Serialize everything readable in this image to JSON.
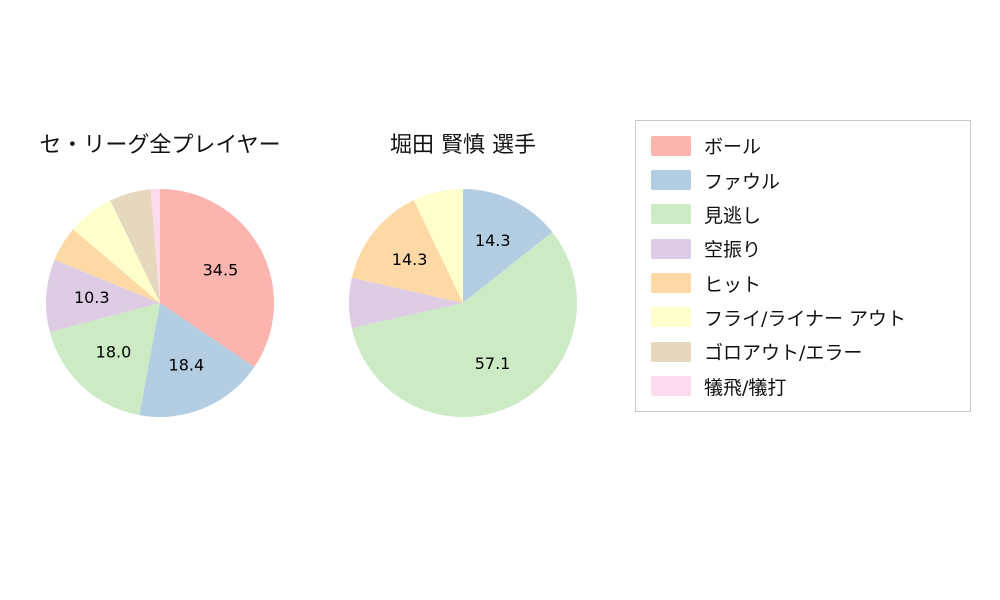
{
  "chart_data": {
    "type": "pie",
    "legend_position": "right",
    "grid": false,
    "categories": [
      "ボール",
      "ファウル",
      "見逃し",
      "空振り",
      "ヒット",
      "フライ/ライナー アウト",
      "ゴロアウト/エラー",
      "犠飛/犠打"
    ],
    "colors": [
      "#fbb4ae",
      "#b3cde3",
      "#ccebc5",
      "#decbe4",
      "#fed9a6",
      "#ffffcc",
      "#e5d8bd",
      "#fddaec"
    ],
    "start_angle": "top",
    "direction": "clockwise",
    "value_label_min_percent": 10,
    "value_label_format": "one_decimal",
    "pies": [
      {
        "title": "セ・リーグ全プレイヤー",
        "values": [
          34.5,
          18.4,
          18.0,
          10.3,
          5.0,
          6.6,
          5.9,
          1.3
        ],
        "shown_value_labels": [
          "34.5",
          "18.4",
          "18.0",
          "10.3"
        ]
      },
      {
        "title": "堀田 賢慎 選手",
        "values": [
          0,
          14.3,
          57.1,
          7.1,
          14.3,
          7.1,
          0,
          0
        ],
        "shown_value_labels": [
          "14.3",
          "57.1",
          "14.3"
        ]
      }
    ]
  }
}
